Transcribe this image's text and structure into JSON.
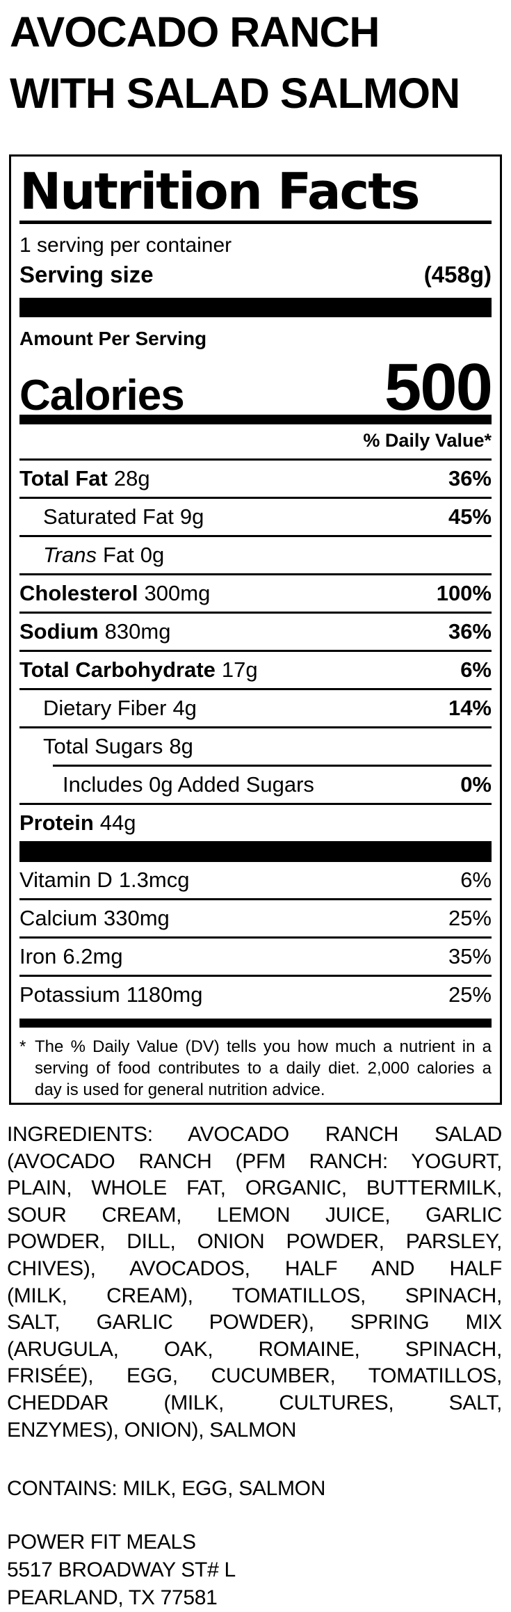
{
  "colors": {
    "background": "#ffffff",
    "text": "#000000"
  },
  "header": {
    "title_line1": "AVOCADO RANCH",
    "title_line2": "WITH SALAD SALMON"
  },
  "nutrition_facts": {
    "title": "Nutrition Facts",
    "servings_per_container": "1 serving per container",
    "serving_size_label": "Serving size",
    "serving_size_value": "(458g)",
    "amount_per_serving": "Amount Per Serving",
    "calories_label": "Calories",
    "calories_value": "500",
    "daily_value_header": "% Daily Value*",
    "rows": [
      {
        "name": "Total Fat",
        "amount": "28g",
        "dv": "36%"
      },
      {
        "name": "Saturated Fat",
        "amount": "9g",
        "dv": "45%"
      },
      {
        "name_italic": "Trans",
        "name": "Fat",
        "amount": "0g",
        "dv": ""
      },
      {
        "name": "Cholesterol",
        "amount": "300mg",
        "dv": "100%"
      },
      {
        "name": "Sodium",
        "amount": "830mg",
        "dv": "36%"
      },
      {
        "name": "Total Carbohydrate",
        "amount": "17g",
        "dv": "6%"
      },
      {
        "name": "Dietary Fiber",
        "amount": "4g",
        "dv": "14%"
      },
      {
        "name": "Total Sugars",
        "amount": "8g",
        "dv": ""
      },
      {
        "name": "Includes 0g Added Sugars",
        "amount": "",
        "dv": "0%"
      },
      {
        "name": "Protein",
        "amount": "44g",
        "dv": ""
      }
    ],
    "vitamins": [
      {
        "name": "Vitamin D",
        "amount": "1.3mcg",
        "dv": "6%"
      },
      {
        "name": "Calcium",
        "amount": "330mg",
        "dv": "25%"
      },
      {
        "name": "Iron",
        "amount": "6.2mg",
        "dv": "35%"
      },
      {
        "name": "Potassium",
        "amount": "1180mg",
        "dv": "25%"
      }
    ],
    "footnote_star": "*",
    "footnote_text": "The % Daily Value (DV) tells you how much a nutrient in a serving of food contributes to a daily diet. 2,000 calories a day is used for general nutrition advice."
  },
  "ingredients": {
    "lines": [
      "INGREDIENTS: AVOCADO RANCH SALAD",
      "(AVOCADO RANCH (PFM RANCH: YOGURT,",
      "PLAIN, WHOLE FAT, ORGANIC, BUTTERMILK,",
      "SOUR CREAM, LEMON JUICE, GARLIC",
      "POWDER, DILL, ONION POWDER, PARSLEY,",
      "CHIVES), AVOCADOS, HALF AND HALF",
      "(MILK, CREAM), TOMATILLOS, SPINACH,",
      "SALT, GARLIC POWDER), SPRING MIX",
      "(ARUGULA, OAK, ROMAINE, SPINACH,",
      "FRISÉE), EGG, CUCUMBER, TOMATILLOS,",
      "CHEDDAR (MILK, CULTURES, SALT,",
      "ENZYMES), ONION), SALMON"
    ]
  },
  "contains": "CONTAINS: MILK, EGG, SALMON",
  "footer": {
    "lines": [
      "POWER FIT MEALS",
      "5517 BROADWAY ST# L",
      "PEARLAND, TX 77581"
    ]
  }
}
